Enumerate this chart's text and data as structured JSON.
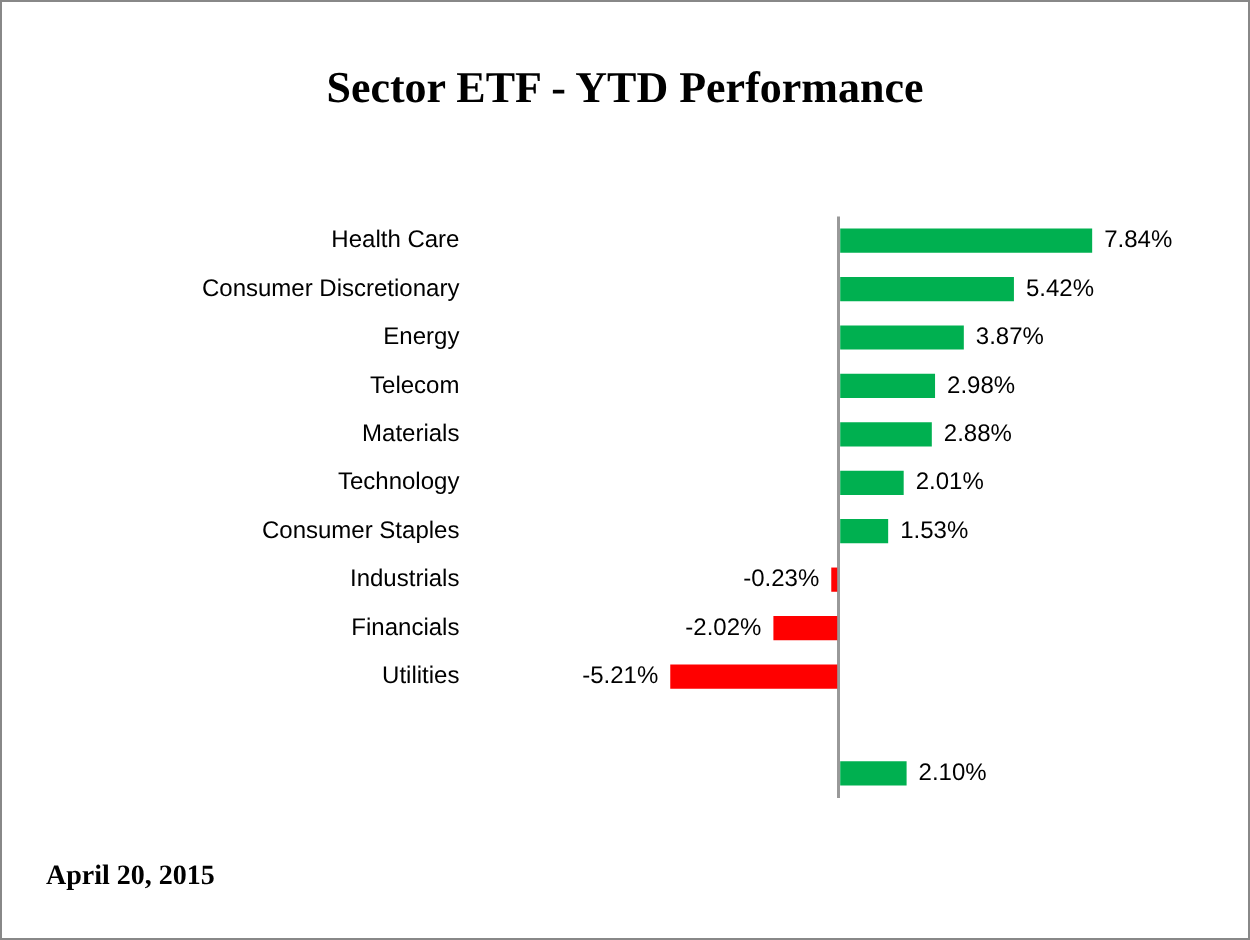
{
  "chart_data": {
    "type": "bar",
    "orientation": "horizontal",
    "title": "Sector ETF - YTD  Performance",
    "categories": [
      "Health Care",
      "Consumer Discretionary",
      "Energy",
      "Telecom",
      "Materials",
      "Technology",
      "Consumer Staples",
      "Industrials",
      "Financials",
      "Utilities",
      null,
      null
    ],
    "values": [
      7.84,
      5.42,
      3.87,
      2.98,
      2.88,
      2.01,
      1.53,
      -0.23,
      -2.02,
      -5.21,
      null,
      2.1
    ],
    "colors": [
      "#00b050",
      "#00b050",
      "#00b050",
      "#00b050",
      "#00b050",
      "#00b050",
      "#00b050",
      "#ff0000",
      "#ff0000",
      "#ff0000",
      "#00b050",
      "#00b050"
    ],
    "value_labels": [
      "7.84%",
      "5.42%",
      "3.87%",
      "2.98%",
      "2.88%",
      "2.01%",
      "1.53%",
      "-0.23%",
      "-2.02%",
      "-5.21%",
      null,
      "2.10%"
    ],
    "annotations": [
      "April 20,  2015"
    ],
    "grid": false,
    "legend": false
  }
}
